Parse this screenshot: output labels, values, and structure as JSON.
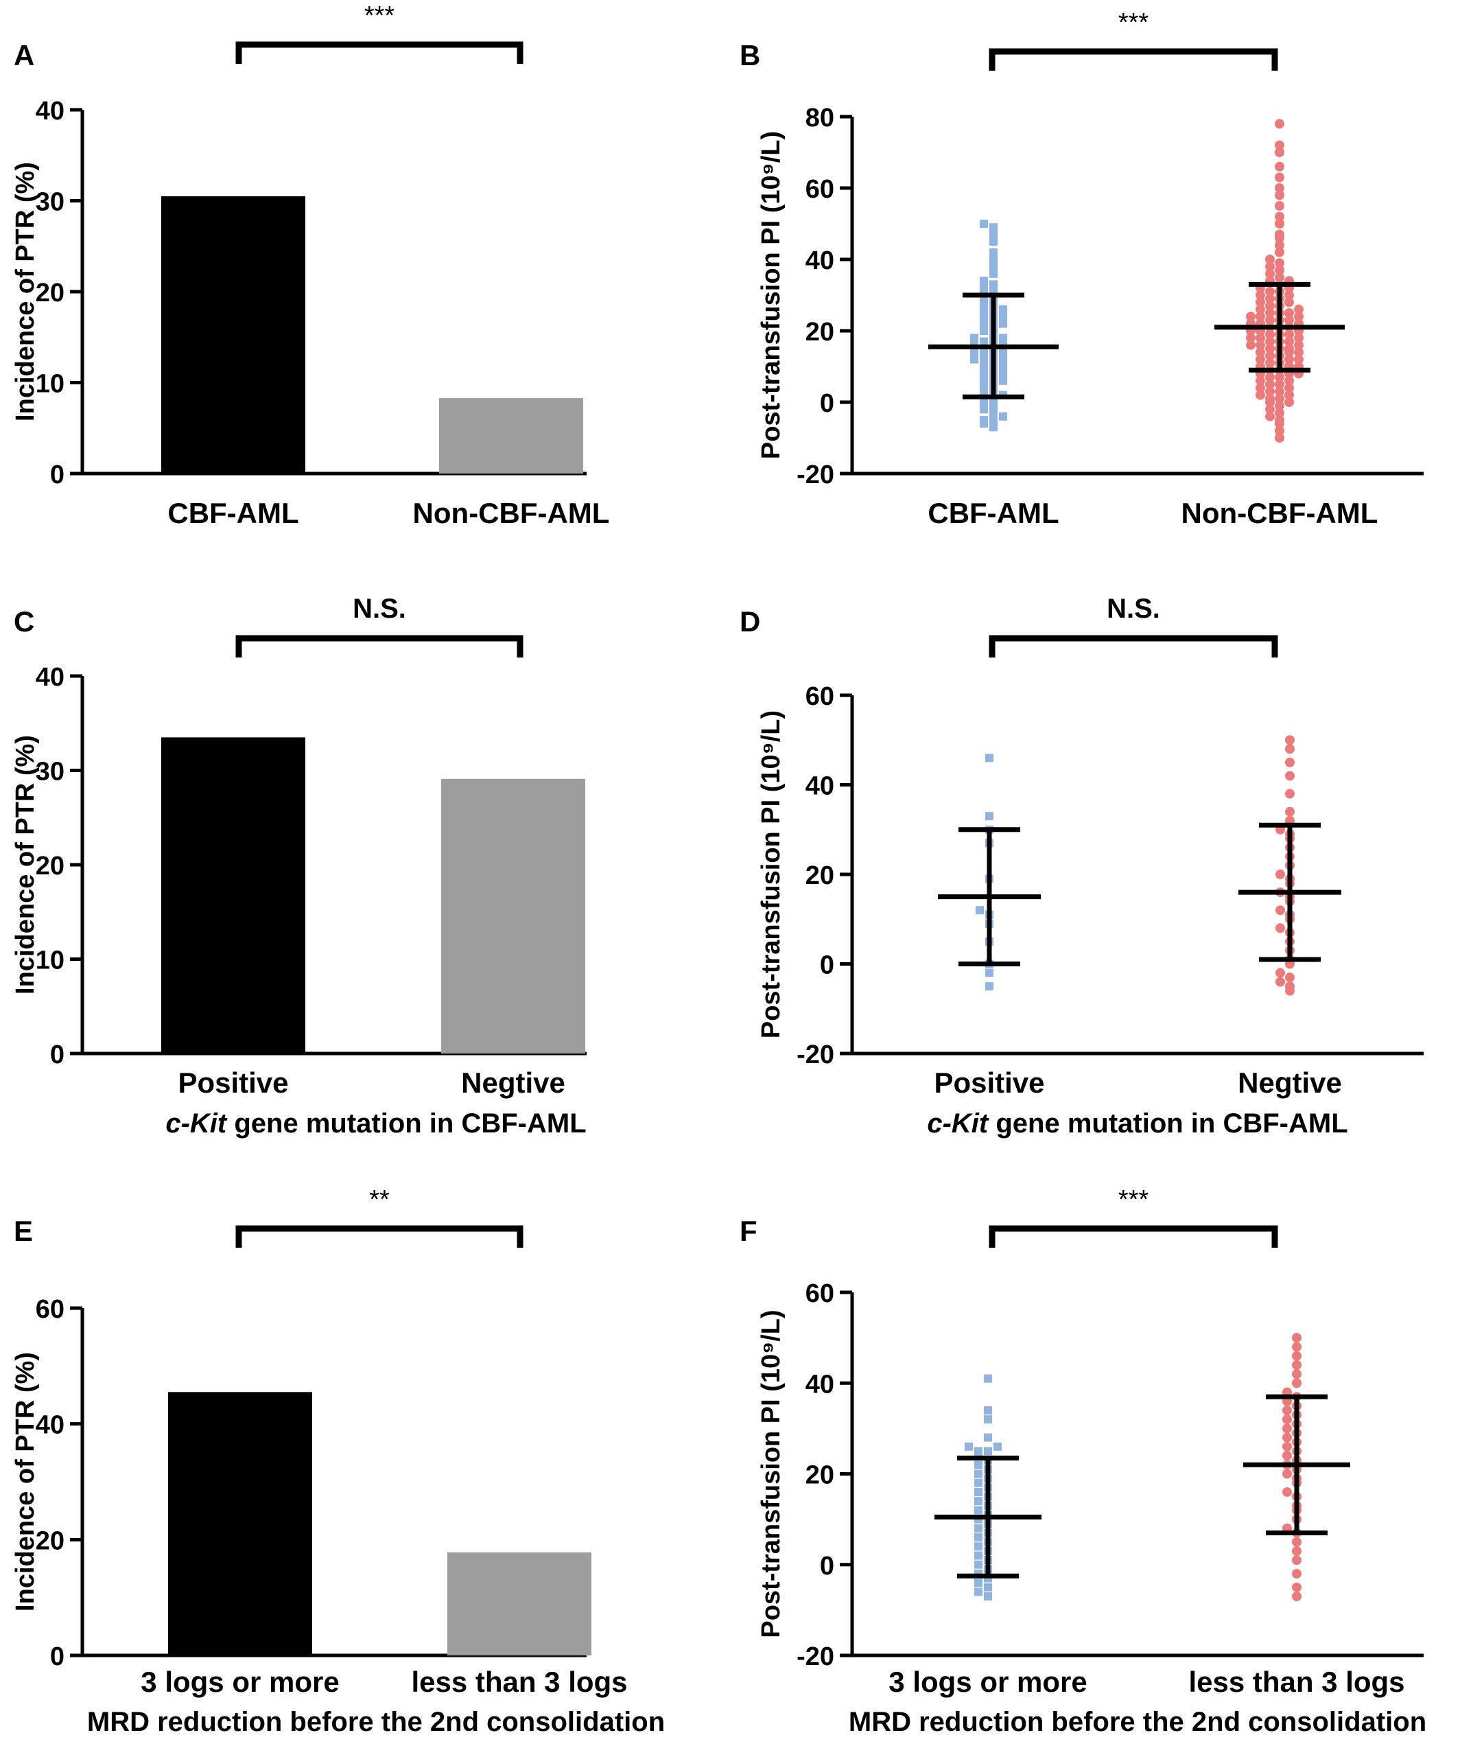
{
  "colors": {
    "black_bar": "#000000",
    "gray_bar": "#9d9d9d",
    "blue_points": "#8fb4e0",
    "red_points": "#ec7a7a"
  },
  "chart_data": [
    {
      "id": "A",
      "type": "bar",
      "panel_label": "A",
      "categories": [
        "CBF-AML",
        "Non-CBF-AML"
      ],
      "values": [
        30.5,
        8.3
      ],
      "bar_colors": [
        "#000000",
        "#9d9d9d"
      ],
      "ylabel": "Incidence of PTR (%)",
      "xlabel": "",
      "ylim": [
        0,
        40
      ],
      "yticks": [
        0,
        10,
        20,
        30,
        40
      ],
      "significance": "***"
    },
    {
      "id": "B",
      "type": "scatter",
      "panel_label": "B",
      "categories": [
        "CBF-AML",
        "Non-CBF-AML"
      ],
      "ylabel": "Post-transfusion PI (10⁹/L)",
      "xlabel": "",
      "ylim": [
        -20,
        80
      ],
      "yticks": [
        -20,
        0,
        20,
        40,
        60,
        80
      ],
      "significance": "***",
      "series": [
        {
          "values": [
            -7,
            -6,
            -5,
            -5,
            -4,
            -3,
            -2,
            -1,
            0,
            1,
            2,
            2,
            3,
            4,
            5,
            6,
            6,
            7,
            8,
            8,
            9,
            10,
            10,
            11,
            11,
            12,
            12,
            13,
            13,
            14,
            14,
            15,
            15,
            16,
            16,
            17,
            17,
            18,
            18,
            19,
            20,
            21,
            22,
            22,
            23,
            24,
            24,
            25,
            26,
            26,
            27,
            28,
            29,
            30,
            31,
            32,
            33,
            34,
            36,
            38,
            40,
            42,
            45,
            47,
            49,
            50
          ],
          "mean": 15.5,
          "sd_low": 1.5,
          "sd_high": 30,
          "marker": "square",
          "color": "#8fb4e0"
        },
        {
          "values": [
            -10,
            -8,
            -6,
            -5,
            -4,
            -3,
            -2,
            -1,
            0,
            0,
            1,
            1,
            2,
            2,
            3,
            3,
            4,
            4,
            5,
            5,
            6,
            6,
            7,
            7,
            8,
            8,
            8,
            9,
            9,
            10,
            10,
            10,
            11,
            11,
            12,
            12,
            12,
            13,
            13,
            14,
            14,
            14,
            15,
            15,
            15,
            16,
            16,
            16,
            17,
            17,
            17,
            18,
            18,
            18,
            19,
            19,
            19,
            20,
            20,
            20,
            21,
            21,
            21,
            22,
            22,
            22,
            23,
            23,
            23,
            24,
            24,
            24,
            25,
            25,
            25,
            26,
            26,
            27,
            27,
            28,
            28,
            29,
            29,
            30,
            30,
            31,
            31,
            32,
            32,
            33,
            34,
            34,
            35,
            36,
            37,
            38,
            39,
            40,
            42,
            44,
            46,
            47,
            50,
            52,
            55,
            58,
            60,
            63,
            66,
            70,
            72,
            78
          ],
          "mean": 21,
          "sd_low": 9,
          "sd_high": 33,
          "marker": "circle",
          "color": "#ec7a7a"
        }
      ]
    },
    {
      "id": "C",
      "type": "bar",
      "panel_label": "C",
      "categories": [
        "Positive",
        "Negtive"
      ],
      "values": [
        33.5,
        29.1
      ],
      "bar_colors": [
        "#000000",
        "#9d9d9d"
      ],
      "ylabel": "Incidence of PTR (%)",
      "xlabel_italic": "c-Kit",
      "xlabel_rest": " gene mutation in CBF-AML",
      "ylim": [
        0,
        40
      ],
      "yticks": [
        0,
        10,
        20,
        30,
        40
      ],
      "significance": "N.S."
    },
    {
      "id": "D",
      "type": "scatter",
      "panel_label": "D",
      "categories": [
        "Positive",
        "Negtive"
      ],
      "ylabel": "Post-transfusion PI (10⁹/L)",
      "xlabel_italic": "c-Kit",
      "xlabel_rest": " gene mutation in CBF-AML",
      "ylim": [
        -20,
        60
      ],
      "yticks": [
        -20,
        0,
        20,
        40,
        60
      ],
      "significance": "N.S.",
      "series": [
        {
          "values": [
            -5,
            -2,
            0,
            5,
            9,
            11,
            12,
            19,
            27,
            30,
            33,
            46
          ],
          "mean": 15,
          "sd_low": 0,
          "sd_high": 30,
          "marker": "square",
          "color": "#8fb4e0"
        },
        {
          "values": [
            -6,
            -5,
            -4,
            -3,
            -2,
            0,
            1,
            3,
            5,
            7,
            8,
            10,
            11,
            12,
            14,
            15,
            16,
            18,
            19,
            20,
            22,
            24,
            26,
            28,
            29,
            30,
            32,
            34,
            38,
            42,
            45,
            48,
            50
          ],
          "mean": 16,
          "sd_low": 1,
          "sd_high": 31,
          "marker": "circle",
          "color": "#ec7a7a"
        }
      ]
    },
    {
      "id": "E",
      "type": "bar",
      "panel_label": "E",
      "categories": [
        "3  logs or more",
        "less than 3 logs"
      ],
      "values": [
        45.5,
        17.8
      ],
      "bar_colors": [
        "#000000",
        "#9d9d9d"
      ],
      "ylabel": "Incidence of PTR (%)",
      "xlabel": "MRD reduction before the 2nd consolidation",
      "ylim": [
        0,
        60
      ],
      "yticks": [
        0,
        20,
        40,
        60
      ],
      "significance": "**"
    },
    {
      "id": "F",
      "type": "scatter",
      "panel_label": "F",
      "categories": [
        "3  logs or more",
        "less than 3 logs"
      ],
      "ylabel": "Post-transfusion PI (10⁹/L)",
      "xlabel": "MRD reduction before the 2nd consolidation",
      "ylim": [
        -20,
        60
      ],
      "yticks": [
        -20,
        0,
        20,
        40,
        60
      ],
      "significance": "***",
      "series": [
        {
          "values": [
            -7,
            -6,
            -5,
            -4,
            -3,
            -2,
            -1,
            0,
            1,
            2,
            3,
            4,
            5,
            6,
            7,
            8,
            9,
            10,
            11,
            12,
            13,
            14,
            15,
            16,
            17,
            18,
            19,
            20,
            21,
            22,
            23,
            24,
            25,
            25,
            26,
            26,
            28,
            32,
            34,
            41
          ],
          "mean": 10.5,
          "sd_low": -2.5,
          "sd_high": 23.5,
          "marker": "square",
          "color": "#8fb4e0"
        },
        {
          "values": [
            -7,
            -5,
            -2,
            1,
            3,
            5,
            7,
            8,
            10,
            12,
            13,
            15,
            16,
            18,
            19,
            20,
            21,
            22,
            23,
            24,
            25,
            26,
            27,
            28,
            29,
            30,
            31,
            32,
            33,
            34,
            35,
            36,
            37,
            38,
            40,
            42,
            44,
            46,
            48,
            50
          ],
          "mean": 22,
          "sd_low": 7,
          "sd_high": 37,
          "marker": "circle",
          "color": "#ec7a7a"
        }
      ]
    }
  ]
}
